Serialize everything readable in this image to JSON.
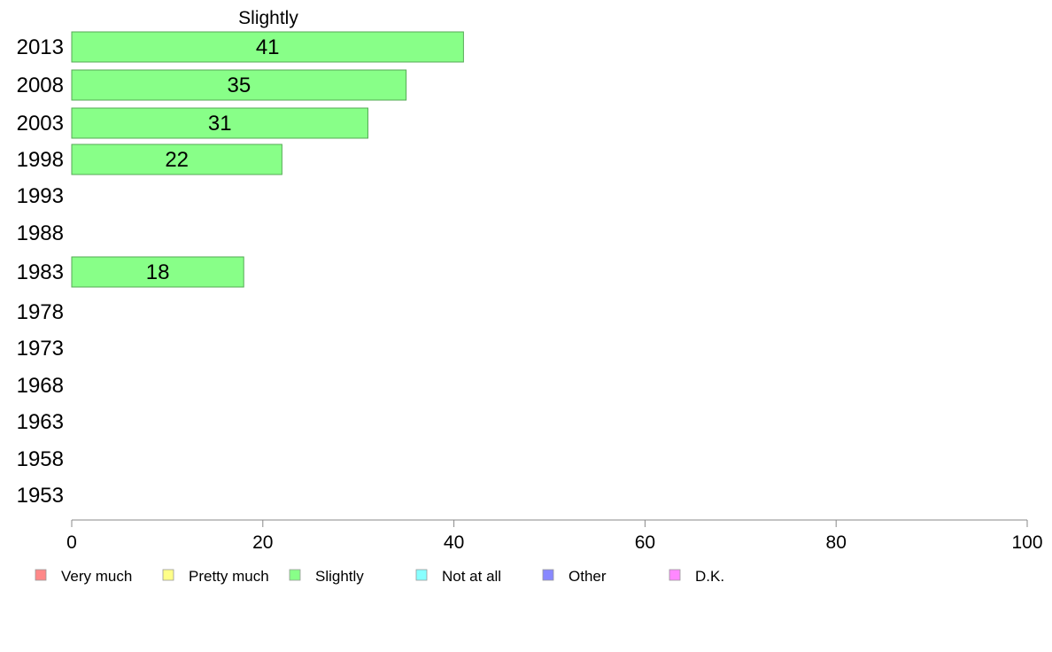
{
  "chart_data": {
    "type": "bar",
    "orientation": "horizontal",
    "title": "Slightly",
    "categories": [
      "2013",
      "2008",
      "2003",
      "1998",
      "1993",
      "1988",
      "1983",
      "1978",
      "1973",
      "1968",
      "1963",
      "1958",
      "1953"
    ],
    "values": [
      41,
      35,
      31,
      22,
      null,
      null,
      18,
      null,
      null,
      null,
      null,
      null,
      null
    ],
    "data_labels": [
      "41",
      "35",
      "31",
      "22",
      "",
      "",
      "18",
      "",
      "",
      "",
      "",
      "",
      ""
    ],
    "xlim": [
      0,
      100
    ],
    "x_ticks": [
      0,
      20,
      40,
      60,
      80,
      100
    ],
    "grid": false,
    "bar_color": "#88ff88",
    "bar_edge_color": "#55aa55",
    "legend_position": "bottom",
    "legend": [
      {
        "label": "Very much",
        "color": "#ff8888"
      },
      {
        "label": "Pretty much",
        "color": "#ffff88"
      },
      {
        "label": "Slightly",
        "color": "#88ff88"
      },
      {
        "label": "Not at all",
        "color": "#88ffff"
      },
      {
        "label": "Other",
        "color": "#8888ff"
      },
      {
        "label": "D.K.",
        "color": "#ff88ff"
      }
    ]
  }
}
